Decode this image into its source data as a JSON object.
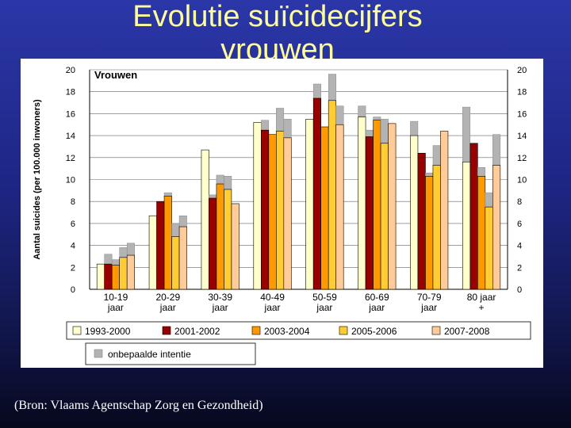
{
  "slide": {
    "title_line1": "Evolutie suïcidecijfers",
    "title_line2": "vrouwen",
    "source": "(Bron: Vlaams Agentschap Zorg en Gezondheid)"
  },
  "chart_data": {
    "type": "bar",
    "title": "Vrouwen",
    "ylabel": "Aantal suicides (per 100.000 inwoners)",
    "xlabel": "",
    "ylim": [
      0,
      20
    ],
    "yticks": [
      "0",
      "2",
      "4",
      "6",
      "8",
      "10",
      "12",
      "14",
      "16",
      "18",
      "20"
    ],
    "categories": [
      [
        "10-19",
        "jaar"
      ],
      [
        "20-29",
        "jaar"
      ],
      [
        "30-39",
        "jaar"
      ],
      [
        "40-49",
        "jaar"
      ],
      [
        "50-59",
        "jaar"
      ],
      [
        "60-69",
        "jaar"
      ],
      [
        "70-79",
        "jaar"
      ],
      [
        "80 jaar",
        "+"
      ]
    ],
    "series": [
      {
        "name": "1993-2000",
        "color": "#ffffcc",
        "values": [
          2.3,
          6.7,
          12.7,
          15.2,
          15.5,
          15.7,
          14.0,
          11.6
        ]
      },
      {
        "name": "2001-2002",
        "color": "#990000",
        "values": [
          2.3,
          8.0,
          8.3,
          14.5,
          17.4,
          13.9,
          12.4,
          13.3
        ]
      },
      {
        "name": "2003-2004",
        "color": "#ff9900",
        "values": [
          2.2,
          8.5,
          9.6,
          14.1,
          14.8,
          15.4,
          10.3,
          10.3
        ]
      },
      {
        "name": "2005-2006",
        "color": "#ffcc33",
        "values": [
          2.9,
          4.8,
          9.1,
          14.4,
          17.2,
          13.3,
          11.3,
          7.5
        ]
      },
      {
        "name": "2007-2008",
        "color": "#ffcc99",
        "values": [
          3.1,
          5.7,
          7.8,
          13.8,
          15.0,
          15.1,
          14.4,
          11.3
        ]
      }
    ],
    "undetermined": {
      "name": "onbepaalde intentie",
      "color": "#b3b3b3",
      "values": [
        [
          0.0,
          0.9,
          0.5,
          0.9,
          1.1
        ],
        [
          0.0,
          0.0,
          0.3,
          1.2,
          1.0
        ],
        [
          0.0,
          0.3,
          0.8,
          1.2,
          0.0
        ],
        [
          0.0,
          0.9,
          0.0,
          2.1,
          1.7
        ],
        [
          0.0,
          1.3,
          0.0,
          2.4,
          1.7
        ],
        [
          1.0,
          0.6,
          0.3,
          2.2,
          0.0
        ],
        [
          1.3,
          0.0,
          0.3,
          1.8,
          0.0
        ],
        [
          5.0,
          0.0,
          0.8,
          1.3,
          2.8
        ]
      ]
    }
  }
}
